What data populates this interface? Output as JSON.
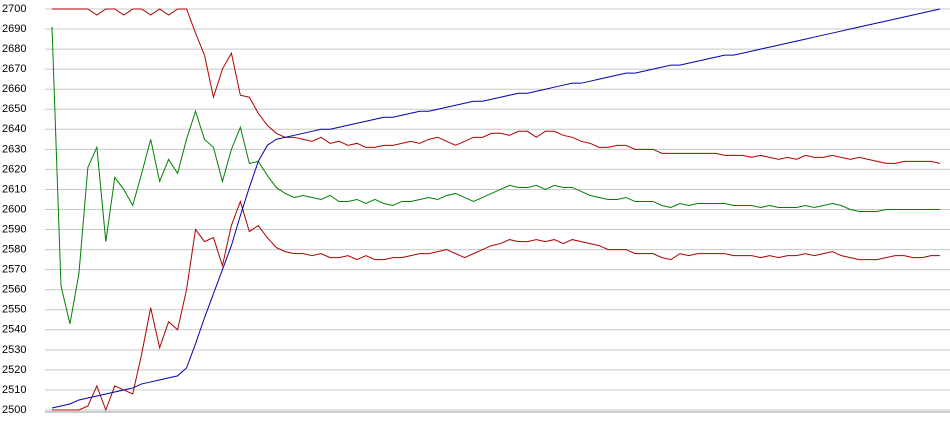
{
  "chart_data": {
    "type": "line",
    "ylim": [
      2500,
      2700
    ],
    "yticks": [
      2500,
      2510,
      2520,
      2530,
      2540,
      2550,
      2560,
      2570,
      2580,
      2590,
      2600,
      2610,
      2620,
      2630,
      2640,
      2650,
      2660,
      2670,
      2680,
      2690,
      2700
    ],
    "grid": true,
    "series": [
      {
        "color": "#b00000",
        "values": [
          2700,
          2700,
          2700,
          2700,
          2700,
          2697,
          2700,
          2700,
          2697,
          2700,
          2700,
          2697,
          2700,
          2697,
          2700,
          2700,
          2688,
          2677,
          2656,
          2670,
          2678,
          2657,
          2656,
          2648,
          2642,
          2638,
          2636,
          2636,
          2635,
          2634,
          2636,
          2633,
          2634,
          2632,
          2633,
          2631,
          2631,
          2632,
          2632,
          2633,
          2634,
          2633,
          2635,
          2636,
          2634,
          2632,
          2634,
          2636,
          2636,
          2638,
          2638,
          2637,
          2639,
          2639,
          2636,
          2639,
          2639,
          2637,
          2636,
          2634,
          2633,
          2631,
          2631,
          2632,
          2632,
          2630,
          2630,
          2630,
          2628,
          2628,
          2628,
          2628,
          2628,
          2628,
          2628,
          2627,
          2627,
          2627,
          2626,
          2627,
          2626,
          2625,
          2626,
          2625,
          2627,
          2626,
          2626,
          2627,
          2626,
          2625,
          2626,
          2625,
          2624,
          2623,
          2623,
          2624,
          2624,
          2624,
          2624,
          2623
        ]
      },
      {
        "color": "#008000",
        "values": [
          2691,
          2562,
          2543,
          2568,
          2621,
          2631,
          2584,
          2616,
          2610,
          2602,
          2618,
          2635,
          2614,
          2625,
          2618,
          2635,
          2649,
          2635,
          2631,
          2614,
          2630,
          2641,
          2623,
          2624,
          2617,
          2611,
          2608,
          2606,
          2607,
          2606,
          2605,
          2607,
          2604,
          2604,
          2605,
          2603,
          2605,
          2603,
          2602,
          2604,
          2604,
          2605,
          2606,
          2605,
          2607,
          2608,
          2606,
          2604,
          2606,
          2608,
          2610,
          2612,
          2611,
          2611,
          2612,
          2610,
          2612,
          2611,
          2611,
          2609,
          2607,
          2606,
          2605,
          2605,
          2606,
          2604,
          2604,
          2604,
          2602,
          2601,
          2603,
          2602,
          2603,
          2603,
          2603,
          2603,
          2602,
          2602,
          2602,
          2601,
          2602,
          2601,
          2601,
          2601,
          2602,
          2601,
          2602,
          2603,
          2602,
          2600,
          2599,
          2599,
          2599,
          2600,
          2600,
          2600,
          2600,
          2600,
          2600,
          2600
        ]
      },
      {
        "color": "#b00000",
        "values": [
          2500,
          2500,
          2500,
          2500,
          2502,
          2512,
          2500,
          2512,
          2510,
          2508,
          2528,
          2551,
          2531,
          2544,
          2540,
          2560,
          2590,
          2584,
          2586,
          2572,
          2592,
          2604,
          2589,
          2592,
          2586,
          2581,
          2579,
          2578,
          2578,
          2577,
          2578,
          2576,
          2576,
          2577,
          2575,
          2577,
          2575,
          2575,
          2576,
          2576,
          2577,
          2578,
          2578,
          2579,
          2580,
          2578,
          2576,
          2578,
          2580,
          2582,
          2583,
          2585,
          2584,
          2584,
          2585,
          2584,
          2585,
          2583,
          2585,
          2584,
          2583,
          2582,
          2580,
          2580,
          2580,
          2578,
          2578,
          2578,
          2576,
          2575,
          2578,
          2577,
          2578,
          2578,
          2578,
          2578,
          2577,
          2577,
          2577,
          2576,
          2577,
          2576,
          2577,
          2577,
          2578,
          2577,
          2578,
          2579,
          2577,
          2576,
          2575,
          2575,
          2575,
          2576,
          2577,
          2577,
          2576,
          2576,
          2577,
          2577
        ]
      },
      {
        "color": "#0000b0",
        "values": [
          2501,
          2502,
          2503,
          2505,
          2506,
          2507,
          2508,
          2509,
          2510,
          2511,
          2513,
          2514,
          2515,
          2516,
          2517,
          2521,
          2533,
          2546,
          2558,
          2570,
          2582,
          2597,
          2611,
          2624,
          2632,
          2635,
          2636,
          2637,
          2638,
          2639,
          2640,
          2640,
          2641,
          2642,
          2643,
          2644,
          2645,
          2646,
          2646,
          2647,
          2648,
          2649,
          2649,
          2650,
          2651,
          2652,
          2653,
          2654,
          2654,
          2655,
          2656,
          2657,
          2658,
          2658,
          2659,
          2660,
          2661,
          2662,
          2663,
          2663,
          2664,
          2665,
          2666,
          2667,
          2668,
          2668,
          2669,
          2670,
          2671,
          2672,
          2672,
          2673,
          2674,
          2675,
          2676,
          2677,
          2677,
          2678,
          2679,
          2680,
          2681,
          2682,
          2683,
          2684,
          2685,
          2686,
          2687,
          2688,
          2689,
          2690,
          2691,
          2692,
          2693,
          2694,
          2695,
          2696,
          2697,
          2698,
          2699,
          2700
        ]
      }
    ]
  }
}
